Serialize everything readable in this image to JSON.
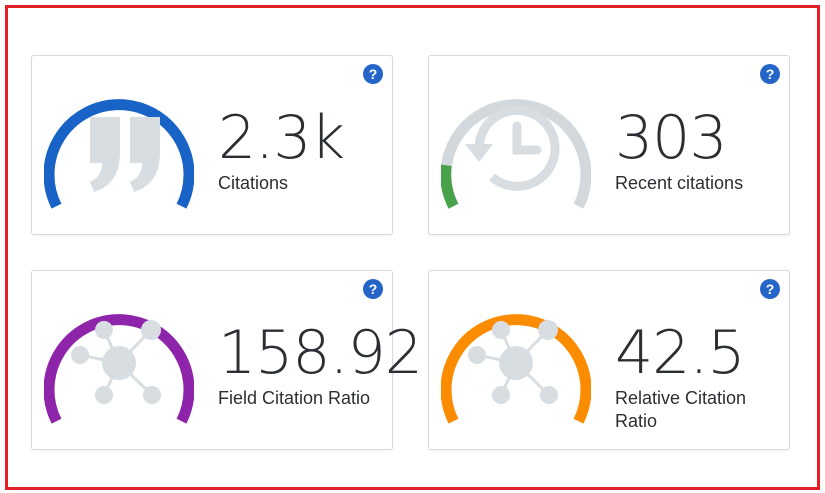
{
  "metrics": [
    {
      "value": "2.3k",
      "label": "Citations",
      "color": "#1a63c6",
      "icon": "quote-icon",
      "arc_fraction": 1.0
    },
    {
      "value": "303",
      "label": "Recent citations",
      "color": "#48a24a",
      "icon": "history-icon",
      "arc_fraction": 0.16
    },
    {
      "value": "158.92",
      "label": "Field Citation Ratio",
      "color": "#8e24aa",
      "icon": "network-icon",
      "arc_fraction": 1.0
    },
    {
      "value": "42.5",
      "label": "Relative Citation Ratio",
      "color": "#fb8c00",
      "icon": "network-icon",
      "arc_fraction": 1.0
    }
  ],
  "help_label": "?",
  "track_color": "#d3d8dc",
  "icon_color": "#d8dde1"
}
